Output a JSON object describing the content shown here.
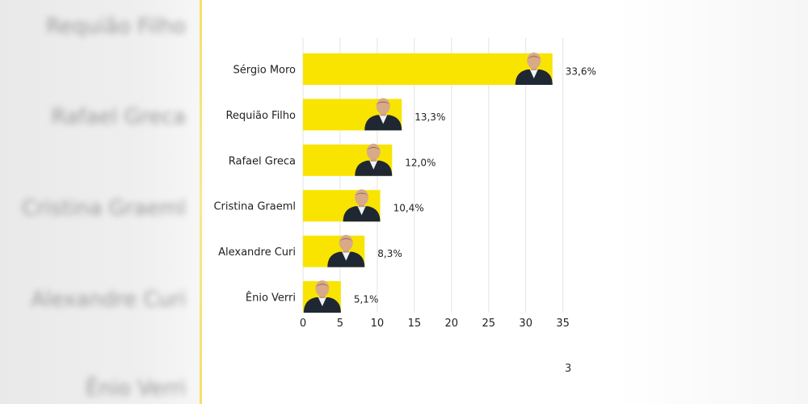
{
  "chart_data": {
    "type": "bar",
    "orientation": "horizontal",
    "categories": [
      "Sérgio Moro",
      "Requião Filho",
      "Rafael Greca",
      "Cristina Graeml",
      "Alexandre Curi",
      "Ênio Verri"
    ],
    "values": [
      33.6,
      13.3,
      12.0,
      10.4,
      8.3,
      5.1
    ],
    "value_labels": [
      "33,6%",
      "13,3%",
      "12,0%",
      "10,4%",
      "8,3%",
      "5,1%"
    ],
    "xticks": [
      0,
      5,
      10,
      15,
      20,
      25,
      30,
      35
    ],
    "xlim": [
      0,
      35
    ],
    "grid": true,
    "bar_color": "#f9e400",
    "title": "",
    "xlabel": "",
    "ylabel": ""
  },
  "side_panel": {
    "ghost_labels": [
      "Requião Filho",
      "Rafael Greca",
      "Cristina Graeml",
      "Alexandre Curi",
      "Ênio Verri"
    ]
  },
  "footer": {
    "page_number": "3"
  }
}
